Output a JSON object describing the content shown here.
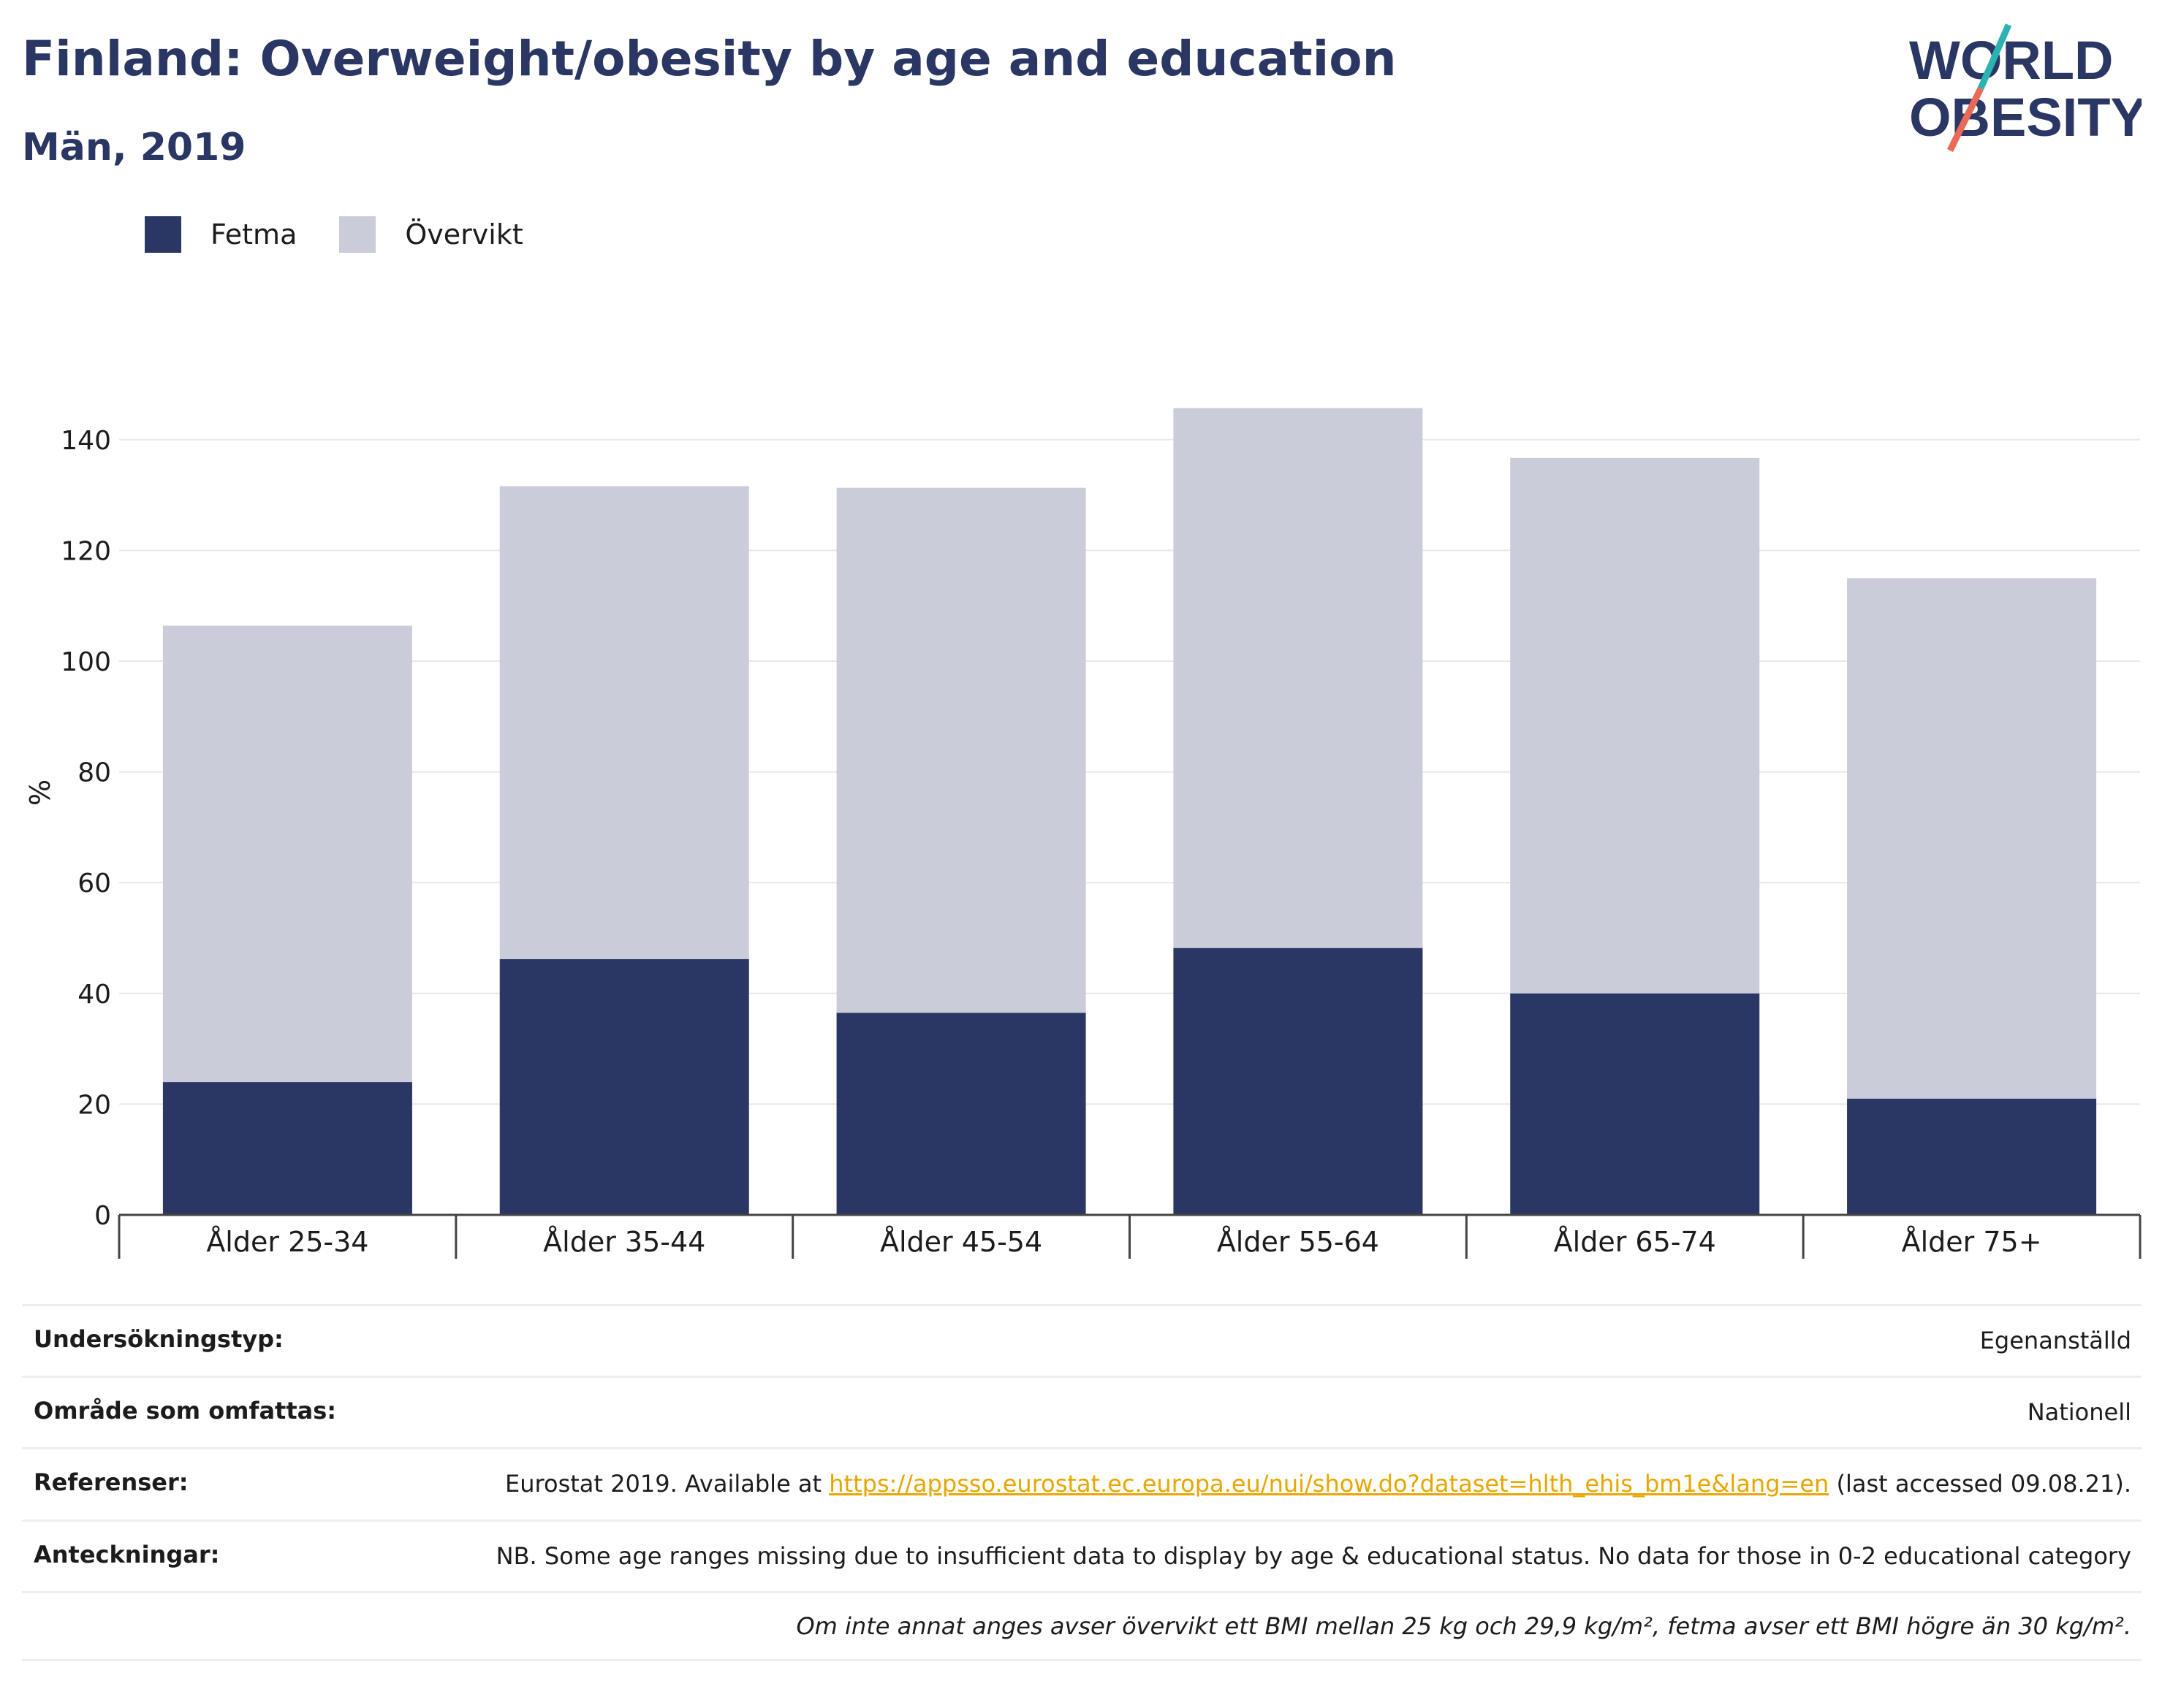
{
  "header": {
    "title": "Finland: Overweight/obesity by age and education",
    "subtitle": "Män, 2019"
  },
  "logo": {
    "line1": "WORLD",
    "line2": "OBESITY"
  },
  "colors": {
    "fetma": "#2a3663",
    "overvikt": "#cacdd9",
    "title": "#2a3663",
    "link": "#e8a600"
  },
  "chart_data": {
    "type": "bar",
    "stacked": true,
    "categories": [
      "Ålder 25-34",
      "Ålder 35-44",
      "Ålder 45-54",
      "Ålder 55-64",
      "Ålder 65-74",
      "Ålder 75+"
    ],
    "series": [
      {
        "name": "Fetma",
        "values": [
          24,
          46.2,
          36.5,
          48.2,
          40,
          21
        ]
      },
      {
        "name": "Övervikt",
        "values": [
          82.4,
          85.4,
          94.8,
          97.5,
          96.7,
          94
        ]
      }
    ],
    "ylabel": "%",
    "xlabel": "",
    "ylim": [
      0,
      150
    ],
    "yticks": [
      0,
      20,
      40,
      60,
      80,
      100,
      120,
      140
    ],
    "grid": true,
    "legend": "top-left"
  },
  "info": {
    "survey_type": {
      "label": "Undersökningstyp:",
      "value": "Egenanställd"
    },
    "area": {
      "label": "Område som omfattas:",
      "value": "Nationell"
    },
    "references": {
      "label": "Referenser:",
      "prefix": "Eurostat 2019. Available at ",
      "link": "https://appsso.eurostat.ec.europa.eu/nui/show.do?dataset=hlth_ehis_bm1e&lang=en",
      "suffix": " (last accessed 09.08.21)."
    },
    "notes": {
      "label": "Anteckningar:",
      "value": "NB. Some age ranges missing due to insufficient data to display by age & educational status. No data for those in 0-2 educational category"
    },
    "footnote": "Om inte annat anges avser övervikt ett BMI mellan 25 kg och 29,9 kg/m², fetma avser ett BMI högre än 30 kg/m²."
  }
}
